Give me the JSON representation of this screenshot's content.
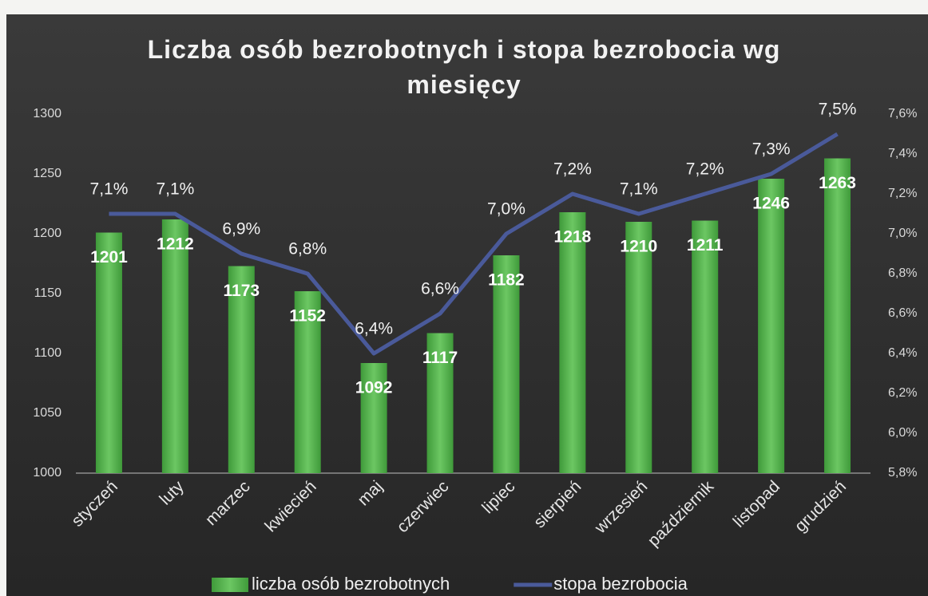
{
  "chart_data": {
    "type": "combo",
    "title": "Liczba osób bezrobotnych i stopa bezrobocia wg miesięcy",
    "categories": [
      "styczeń",
      "luty",
      "marzec",
      "kwiecień",
      "maj",
      "czerwiec",
      "lipiec",
      "sierpień",
      "wrzesień",
      "październik",
      "listopad",
      "grudzień"
    ],
    "series": [
      {
        "name": "liczba osób bezrobotnych",
        "type": "bar",
        "color": "#5cb85a",
        "values": [
          1201,
          1212,
          1173,
          1152,
          1092,
          1117,
          1182,
          1218,
          1210,
          1211,
          1246,
          1263
        ]
      },
      {
        "name": "stopa bezrobocia",
        "type": "line",
        "axis": "y2",
        "color": "#4a5a9a",
        "values": [
          7.1,
          7.1,
          6.9,
          6.8,
          6.4,
          6.6,
          7.0,
          7.2,
          7.1,
          7.2,
          7.3,
          7.5
        ],
        "value_labels": [
          "7,1%",
          "7,1%",
          "6,9%",
          "6,8%",
          "6,4%",
          "6,6%",
          "7,0%",
          "7,2%",
          "7,1%",
          "7,2%",
          "7,3%",
          "7,5%"
        ]
      }
    ],
    "ylim": [
      1000,
      1300
    ],
    "yticks": [
      1000,
      1050,
      1100,
      1150,
      1200,
      1250,
      1300
    ],
    "y2lim": [
      5.8,
      7.6
    ],
    "y2ticks": [
      {
        "value": 5.8,
        "label": "5,8%"
      },
      {
        "value": 6.0,
        "label": "6,0%"
      },
      {
        "value": 6.2,
        "label": "6,2%"
      },
      {
        "value": 6.4,
        "label": "6,4%"
      },
      {
        "value": 6.6,
        "label": "6,6%"
      },
      {
        "value": 6.8,
        "label": "6,8%"
      },
      {
        "value": 7.0,
        "label": "7,0%"
      },
      {
        "value": 7.2,
        "label": "7,2%"
      },
      {
        "value": 7.4,
        "label": "7,4%"
      },
      {
        "value": 7.6,
        "label": "7,6%"
      }
    ],
    "legend": "bottom"
  }
}
